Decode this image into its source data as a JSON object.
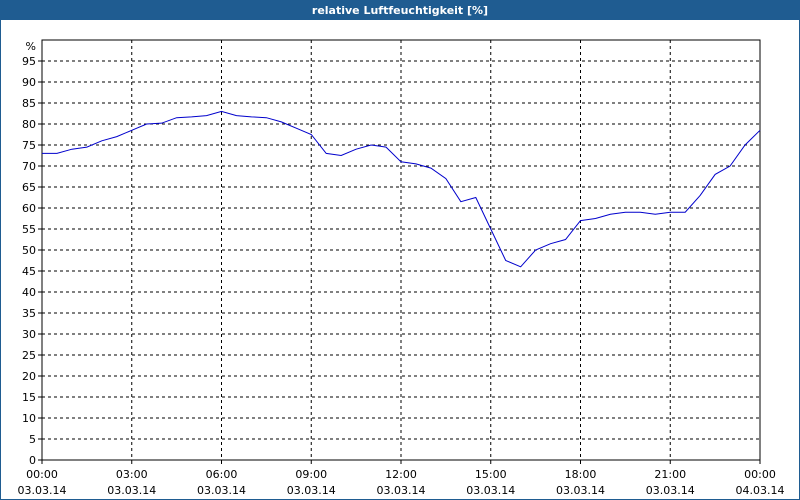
{
  "chart_data": {
    "type": "line",
    "title": "relative Luftfeuchtigkeit [%]",
    "y_label": "%",
    "x": [
      0,
      0.5,
      1,
      1.5,
      2,
      2.5,
      3,
      3.5,
      4,
      4.5,
      5,
      5.5,
      6,
      6.5,
      7,
      7.5,
      8,
      8.5,
      9,
      9.5,
      10,
      10.5,
      11,
      11.5,
      12,
      12.5,
      13,
      13.5,
      14,
      14.5,
      15,
      15.5,
      16,
      16.5,
      17,
      17.5,
      18,
      18.5,
      19,
      19.5,
      20,
      20.5,
      21,
      21.5,
      22,
      22.5,
      23,
      23.5,
      24
    ],
    "series": [
      {
        "name": "relative Luftfeuchtigkeit",
        "color": "#0000cc",
        "values": [
          73,
          73,
          74,
          74.5,
          76,
          77,
          78.5,
          80,
          80.2,
          81.5,
          81.7,
          82,
          83,
          82,
          81.7,
          81.5,
          80.5,
          79,
          77.5,
          73,
          72.5,
          74,
          75,
          74.5,
          71,
          70.5,
          69.5,
          67,
          61.5,
          62.5,
          55,
          47.5,
          46,
          50,
          51.5,
          52.5,
          57,
          57.5,
          58.5,
          59,
          59,
          58.5,
          59,
          59,
          63,
          68,
          70,
          75,
          78.5
        ]
      }
    ],
    "xlim": [
      0,
      24
    ],
    "xticks": [
      {
        "value": 0,
        "label": "00:00 03.03.14"
      },
      {
        "value": 3,
        "label": "03:00 03.03.14"
      },
      {
        "value": 6,
        "label": "06:00 03.03.14"
      },
      {
        "value": 9,
        "label": "09:00 03.03.14"
      },
      {
        "value": 12,
        "label": "12:00 03.03.14"
      },
      {
        "value": 15,
        "label": "15:00 03.03.14"
      },
      {
        "value": 18,
        "label": "18:00 03.03.14"
      },
      {
        "value": 21,
        "label": "21:00 03.03.14"
      },
      {
        "value": 24,
        "label": "00:00 04.03.14"
      }
    ],
    "ylim": [
      0,
      100
    ],
    "yticks": [
      0,
      5,
      10,
      15,
      20,
      25,
      30,
      35,
      40,
      45,
      50,
      55,
      60,
      65,
      70,
      75,
      80,
      85,
      90,
      95
    ],
    "grid": true
  }
}
